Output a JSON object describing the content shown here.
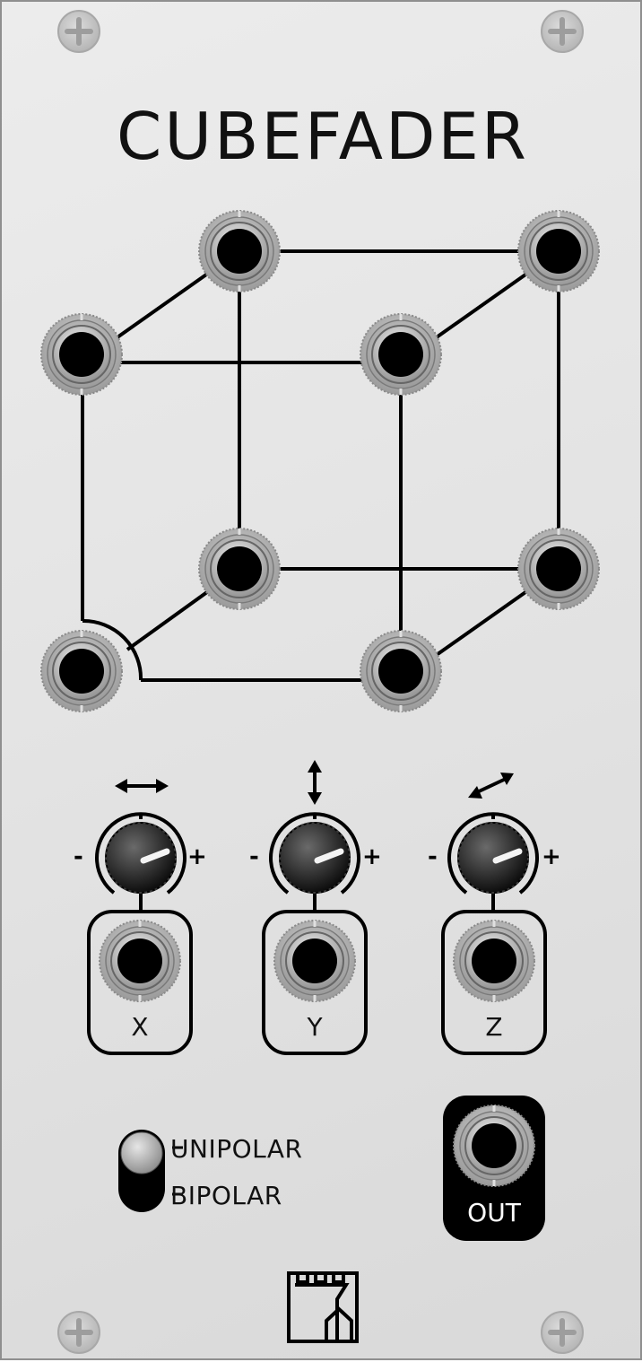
{
  "panel": {
    "title": "CUBEFADER",
    "accent": "#111111",
    "background": "#e4e4e4"
  },
  "corner_jacks": {
    "icon": "jack-icon",
    "items": [
      {
        "name": "jack-back-top-left"
      },
      {
        "name": "jack-back-top-right"
      },
      {
        "name": "jack-front-top-left"
      },
      {
        "name": "jack-front-top-right"
      },
      {
        "name": "jack-back-bottom-left"
      },
      {
        "name": "jack-back-bottom-right"
      },
      {
        "name": "jack-front-bottom-left"
      },
      {
        "name": "jack-front-bottom-right"
      }
    ]
  },
  "controls": {
    "x": {
      "label": "X",
      "arrow_icon": "horizontal-arrow-icon",
      "minus": "-",
      "plus": "+"
    },
    "y": {
      "label": "Y",
      "arrow_icon": "vertical-arrow-icon",
      "minus": "-",
      "plus": "+"
    },
    "z": {
      "label": "Z",
      "arrow_icon": "diagonal-arrow-icon",
      "minus": "-",
      "plus": "+"
    }
  },
  "switch": {
    "options": [
      "UNIPOLAR",
      "BIPOLAR"
    ],
    "selected": "UNIPOLAR"
  },
  "output": {
    "label": "OUT"
  },
  "logo": {
    "icon": "castle-logo-icon"
  }
}
